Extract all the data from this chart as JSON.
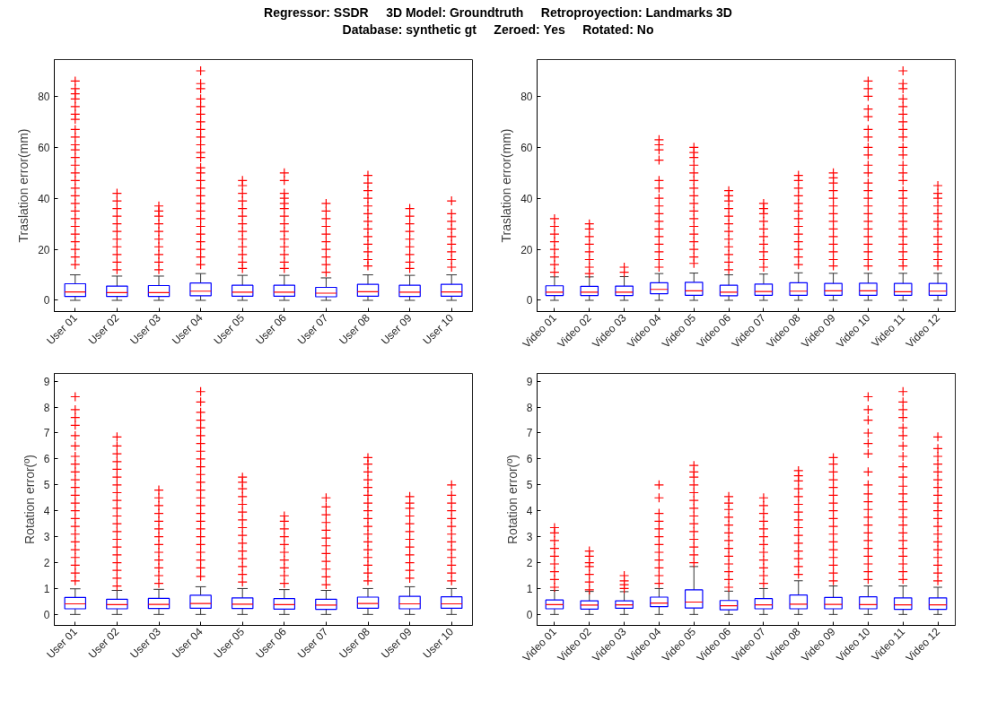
{
  "chart_data": [
    {
      "type": "box",
      "title": "Regressor: SSDR     3D Model: Groundtruth     Retroproyection: Landmarks 3D",
      "subtitle": "Database: synthetic gt     Zeroed: Yes     Rotated: No",
      "ylabel": "Traslation error(mm)",
      "categories": [
        "User 01",
        "User 02",
        "User 03",
        "User 04",
        "User 05",
        "User 06",
        "User 07",
        "User 08",
        "User 09",
        "User 10"
      ],
      "ylim": [
        -4.4,
        94.4
      ],
      "yticks": [
        0,
        20,
        40,
        60,
        80
      ],
      "grid": false,
      "marker": "cross",
      "series": [
        {
          "color": "#0000ff",
          "boxes": [
            {
              "low": 0,
              "q1": 1.5,
              "median": 3.3,
              "q3": 6.5,
              "high": 10,
              "outliers": [
                14,
                17,
                20,
                23,
                26,
                29,
                32,
                35,
                38,
                41,
                44,
                47,
                50,
                53,
                56,
                59,
                61,
                64,
                67,
                71,
                73,
                76,
                79,
                81,
                83,
                86
              ]
            },
            {
              "low": 0,
              "q1": 1.5,
              "median": 3.0,
              "q3": 5.6,
              "high": 9.5,
              "outliers": [
                12,
                15,
                18,
                21,
                24,
                27,
                30,
                33,
                36,
                39,
                42
              ]
            },
            {
              "low": 0,
              "q1": 1.5,
              "median": 3.0,
              "q3": 5.8,
              "high": 9.5,
              "outliers": [
                12,
                15,
                18,
                21,
                24,
                27,
                30,
                33,
                35,
                37
              ]
            },
            {
              "low": 0,
              "q1": 1.8,
              "median": 3.6,
              "q3": 6.8,
              "high": 10.5,
              "outliers": [
                14,
                17,
                20,
                23,
                26,
                29,
                32,
                35,
                38,
                41,
                44,
                47,
                50,
                52,
                56,
                58,
                61,
                64,
                67,
                70,
                73,
                76,
                79,
                83,
                85,
                90
              ]
            },
            {
              "low": 0,
              "q1": 1.6,
              "median": 3.2,
              "q3": 5.9,
              "high": 9.8,
              "outliers": [
                12.5,
                15,
                18,
                21,
                24,
                27,
                30,
                33,
                36,
                39,
                42,
                45,
                47
              ]
            },
            {
              "low": 0,
              "q1": 1.6,
              "median": 3.2,
              "q3": 5.9,
              "high": 9.8,
              "outliers": [
                12.5,
                15,
                18,
                21,
                24,
                27,
                30,
                33,
                36,
                38,
                40,
                42,
                47,
                50
              ]
            },
            {
              "low": 0,
              "q1": 1.4,
              "median": 2.8,
              "q3": 5.1,
              "high": 8.8,
              "outliers": [
                11,
                14,
                17,
                20,
                23,
                26,
                29,
                32,
                35,
                38
              ]
            },
            {
              "low": 0,
              "q1": 1.6,
              "median": 3.4,
              "q3": 6.3,
              "high": 10,
              "outliers": [
                13.5,
                16,
                19,
                22,
                25,
                28,
                31,
                34,
                37,
                40,
                43,
                46,
                49
              ]
            },
            {
              "low": 0,
              "q1": 1.5,
              "median": 3.2,
              "q3": 5.9,
              "high": 9.8,
              "outliers": [
                12.5,
                15,
                18,
                21,
                24,
                27,
                30,
                33,
                36
              ]
            },
            {
              "low": 0,
              "q1": 1.6,
              "median": 3.3,
              "q3": 6.3,
              "high": 10,
              "outliers": [
                13,
                16,
                19,
                22,
                25,
                28,
                31,
                34,
                39
              ]
            }
          ]
        }
      ]
    },
    {
      "type": "box",
      "ylabel": "Traslation error(mm)",
      "categories": [
        "Video 01",
        "Video 02",
        "Video 03",
        "Video 04",
        "Video 05",
        "Video 06",
        "Video 07",
        "Video 08",
        "Video 09",
        "Video 10",
        "Video 11",
        "Video 12"
      ],
      "ylim": [
        -4.4,
        94.4
      ],
      "yticks": [
        0,
        20,
        40,
        60,
        80
      ],
      "grid": false,
      "marker": "cross",
      "series": [
        {
          "color": "#0000ff",
          "boxes": [
            {
              "low": 0,
              "q1": 1.9,
              "median": 3.2,
              "q3": 5.7,
              "high": 9.2,
              "outliers": [
                11,
                14,
                17,
                20,
                23,
                26,
                29,
                32
              ]
            },
            {
              "low": 0,
              "q1": 1.9,
              "median": 3.2,
              "q3": 5.5,
              "high": 9.2,
              "outliers": [
                10.5,
                13,
                16,
                19,
                22,
                25,
                28,
                30
              ]
            },
            {
              "low": 0,
              "q1": 1.9,
              "median": 3.2,
              "q3": 5.6,
              "high": 9.3,
              "outliers": [
                11,
                13
              ]
            },
            {
              "low": 0,
              "q1": 2.6,
              "median": 4.3,
              "q3": 6.9,
              "high": 10.5,
              "outliers": [
                13,
                16,
                19,
                22,
                25,
                28,
                31,
                34,
                37,
                40,
                44,
                47,
                55,
                59,
                61,
                63
              ]
            },
            {
              "low": 0,
              "q1": 2,
              "median": 3.7,
              "q3": 7.1,
              "high": 10.7,
              "outliers": [
                14.5,
                17,
                20,
                23,
                26,
                29,
                32,
                35,
                38,
                41,
                44,
                47,
                50,
                53,
                56,
                58,
                60
              ]
            },
            {
              "low": 0,
              "q1": 1.8,
              "median": 3.2,
              "q3": 5.9,
              "high": 10,
              "outliers": [
                12,
                15,
                18,
                21,
                24,
                27,
                30,
                33,
                36,
                39,
                41,
                43
              ]
            },
            {
              "low": 0,
              "q1": 2,
              "median": 3.5,
              "q3": 6.4,
              "high": 10.3,
              "outliers": [
                13,
                16,
                19,
                22,
                25,
                28,
                31,
                34,
                36,
                38
              ]
            },
            {
              "low": 0,
              "q1": 2,
              "median": 3.6,
              "q3": 6.9,
              "high": 10.8,
              "outliers": [
                14,
                17,
                20,
                23,
                26,
                29,
                32,
                35,
                38,
                41,
                44,
                47,
                49
              ]
            },
            {
              "low": 0,
              "q1": 2,
              "median": 3.7,
              "q3": 6.6,
              "high": 10.6,
              "outliers": [
                13.5,
                16,
                19,
                22,
                25,
                28,
                31,
                34,
                37,
                40,
                43,
                46,
                48,
                50
              ]
            },
            {
              "low": 0,
              "q1": 2,
              "median": 3.7,
              "q3": 6.7,
              "high": 10.6,
              "outliers": [
                13.5,
                16,
                19,
                22,
                25,
                28,
                31,
                34,
                37,
                40,
                43,
                46,
                50,
                53,
                57,
                60,
                64,
                67,
                72,
                75,
                80,
                83,
                86
              ]
            },
            {
              "low": 0,
              "q1": 2,
              "median": 3.4,
              "q3": 6.6,
              "high": 10.6,
              "outliers": [
                13.5,
                16,
                19,
                22,
                25,
                28,
                31,
                34,
                37,
                40,
                43,
                47,
                50,
                53,
                57,
                60,
                64,
                67,
                70,
                73,
                76,
                79,
                83,
                85,
                90
              ]
            },
            {
              "low": 0,
              "q1": 2,
              "median": 3.6,
              "q3": 6.6,
              "high": 10.6,
              "outliers": [
                13.5,
                16,
                19,
                22,
                25,
                28,
                31,
                34,
                37,
                40,
                42,
                45
              ]
            }
          ]
        }
      ]
    },
    {
      "type": "box",
      "ylabel": "Rotation error(º)",
      "categories": [
        "User 01",
        "User 02",
        "User 03",
        "User 04",
        "User 05",
        "User 06",
        "User 07",
        "User 08",
        "User 09",
        "User 10"
      ],
      "ylim": [
        -0.42,
        9.3
      ],
      "yticks": [
        0,
        1,
        2,
        3,
        4,
        5,
        6,
        7,
        8,
        9
      ],
      "grid": false,
      "marker": "cross",
      "series": [
        {
          "color": "#0000ff",
          "boxes": [
            {
              "low": 0,
              "q1": 0.22,
              "median": 0.41,
              "q3": 0.66,
              "high": 0.99,
              "outliers": [
                1.3,
                1.6,
                1.9,
                2.2,
                2.5,
                2.8,
                3.1,
                3.4,
                3.7,
                4.0,
                4.3,
                4.6,
                4.9,
                5.2,
                5.5,
                5.8,
                6.1,
                6.5,
                6.9,
                7.3,
                7.6,
                7.9,
                8.4
              ]
            },
            {
              "low": 0,
              "q1": 0.22,
              "median": 0.38,
              "q3": 0.59,
              "high": 0.93,
              "outliers": [
                1.1,
                1.4,
                1.7,
                2.0,
                2.3,
                2.6,
                2.9,
                3.2,
                3.5,
                3.8,
                4.1,
                4.4,
                4.7,
                5.0,
                5.3,
                5.6,
                5.9,
                6.2,
                6.5,
                6.85
              ]
            },
            {
              "low": 0,
              "q1": 0.23,
              "median": 0.39,
              "q3": 0.62,
              "high": 0.97,
              "outliers": [
                1.2,
                1.5,
                1.8,
                2.1,
                2.4,
                2.7,
                3.0,
                3.3,
                3.6,
                3.9,
                4.2,
                4.5,
                4.8
              ]
            },
            {
              "low": 0,
              "q1": 0.24,
              "median": 0.42,
              "q3": 0.74,
              "high": 1.07,
              "outliers": [
                1.47,
                1.8,
                2.1,
                2.4,
                2.7,
                3.0,
                3.3,
                3.6,
                3.9,
                4.2,
                4.5,
                4.8,
                5.1,
                5.4,
                5.7,
                6.0,
                6.3,
                6.6,
                6.9,
                7.2,
                7.5,
                7.8,
                8.2,
                8.6
              ]
            },
            {
              "low": 0,
              "q1": 0.23,
              "median": 0.4,
              "q3": 0.64,
              "high": 1.0,
              "outliers": [
                1.25,
                1.55,
                1.85,
                2.15,
                2.45,
                2.75,
                3.05,
                3.35,
                3.65,
                3.95,
                4.25,
                4.55,
                4.85,
                5.1,
                5.3
              ]
            },
            {
              "low": 0,
              "q1": 0.21,
              "median": 0.38,
              "q3": 0.61,
              "high": 0.96,
              "outliers": [
                1.2,
                1.5,
                1.8,
                2.1,
                2.4,
                2.7,
                3.0,
                3.3,
                3.6,
                3.8
              ]
            },
            {
              "low": 0,
              "q1": 0.2,
              "median": 0.36,
              "q3": 0.59,
              "high": 0.93,
              "outliers": [
                1.15,
                1.45,
                1.75,
                2.05,
                2.35,
                2.65,
                2.95,
                3.25,
                3.55,
                3.85,
                4.15,
                4.5
              ]
            },
            {
              "low": 0,
              "q1": 0.24,
              "median": 0.42,
              "q3": 0.67,
              "high": 1.0,
              "outliers": [
                1.3,
                1.6,
                1.9,
                2.2,
                2.5,
                2.8,
                3.1,
                3.4,
                3.7,
                4.0,
                4.3,
                4.6,
                4.9,
                5.2,
                5.5,
                5.8,
                6.05
              ]
            },
            {
              "low": 0,
              "q1": 0.22,
              "median": 0.41,
              "q3": 0.7,
              "high": 1.07,
              "outliers": [
                1.4,
                1.7,
                2.0,
                2.3,
                2.6,
                2.9,
                3.2,
                3.5,
                3.8,
                4.1,
                4.3,
                4.55
              ]
            },
            {
              "low": 0,
              "q1": 0.24,
              "median": 0.41,
              "q3": 0.68,
              "high": 1.0,
              "outliers": [
                1.3,
                1.6,
                1.9,
                2.2,
                2.5,
                2.8,
                3.1,
                3.4,
                3.7,
                4.0,
                4.3,
                4.6,
                5.0
              ]
            }
          ]
        }
      ]
    },
    {
      "type": "box",
      "ylabel": "Rotation error(º)",
      "categories": [
        "Video 01",
        "Video 02",
        "Video 03",
        "Video 04",
        "Video 05",
        "Video 06",
        "Video 07",
        "Video 08",
        "Video 09",
        "Video 10",
        "Video 11",
        "Video 12"
      ],
      "ylim": [
        -0.42,
        9.3
      ],
      "yticks": [
        0,
        1,
        2,
        3,
        4,
        5,
        6,
        7,
        8,
        9
      ],
      "grid": false,
      "marker": "cross",
      "series": [
        {
          "color": "#0000ff",
          "boxes": [
            {
              "low": 0,
              "q1": 0.22,
              "median": 0.38,
              "q3": 0.56,
              "high": 0.93,
              "outliers": [
                1.05,
                1.35,
                1.65,
                1.95,
                2.25,
                2.55,
                2.85,
                3.15,
                3.35
              ]
            },
            {
              "low": 0,
              "q1": 0.21,
              "median": 0.36,
              "q3": 0.53,
              "high": 0.89,
              "outliers": [
                0.95,
                1.25,
                1.55,
                1.85,
                2.0,
                2.25,
                2.45
              ]
            },
            {
              "low": 0,
              "q1": 0.24,
              "median": 0.37,
              "q3": 0.53,
              "high": 0.88,
              "outliers": [
                1.0,
                1.15,
                1.3,
                1.5
              ]
            },
            {
              "low": 0,
              "q1": 0.3,
              "median": 0.44,
              "q3": 0.67,
              "high": 1.0,
              "outliers": [
                1.2,
                1.5,
                1.8,
                2.1,
                2.4,
                2.7,
                3.0,
                3.3,
                3.6,
                3.9,
                4.5,
                5.0
              ]
            },
            {
              "low": 0,
              "q1": 0.25,
              "median": 0.48,
              "q3": 0.95,
              "high": 1.85,
              "outliers": [
                2.0,
                2.3,
                2.6,
                2.9,
                3.2,
                3.5,
                3.8,
                4.1,
                4.4,
                4.7,
                5.0,
                5.3,
                5.5,
                5.75
              ]
            },
            {
              "low": 0,
              "q1": 0.18,
              "median": 0.34,
              "q3": 0.54,
              "high": 0.9,
              "outliers": [
                1.05,
                1.35,
                1.65,
                1.95,
                2.25,
                2.55,
                2.85,
                3.15,
                3.45,
                3.75,
                4.05,
                4.3,
                4.55
              ]
            },
            {
              "low": 0,
              "q1": 0.22,
              "median": 0.37,
              "q3": 0.61,
              "high": 1.0,
              "outliers": [
                1.2,
                1.5,
                1.8,
                2.1,
                2.4,
                2.7,
                3.0,
                3.3,
                3.6,
                3.9,
                4.2,
                4.5
              ]
            },
            {
              "low": 0,
              "q1": 0.22,
              "median": 0.4,
              "q3": 0.75,
              "high": 1.3,
              "outliers": [
                1.55,
                1.85,
                2.15,
                2.45,
                2.75,
                3.05,
                3.35,
                3.65,
                3.95,
                4.25,
                4.55,
                4.85,
                5.15,
                5.35,
                5.55
              ]
            },
            {
              "low": 0,
              "q1": 0.22,
              "median": 0.39,
              "q3": 0.66,
              "high": 1.1,
              "outliers": [
                1.3,
                1.6,
                1.9,
                2.2,
                2.5,
                2.8,
                3.1,
                3.4,
                3.7,
                4.0,
                4.3,
                4.6,
                4.9,
                5.2,
                5.5,
                5.8,
                6.05
              ]
            },
            {
              "low": 0,
              "q1": 0.22,
              "median": 0.38,
              "q3": 0.68,
              "high": 1.1,
              "outliers": [
                1.35,
                1.65,
                1.95,
                2.25,
                2.55,
                2.85,
                3.15,
                3.45,
                3.75,
                4.05,
                4.35,
                4.65,
                5.0,
                5.5,
                6.2,
                6.6,
                7.0,
                7.5,
                7.9,
                8.4
              ]
            },
            {
              "low": 0,
              "q1": 0.2,
              "median": 0.37,
              "q3": 0.64,
              "high": 1.1,
              "outliers": [
                1.35,
                1.65,
                1.95,
                2.25,
                2.55,
                2.85,
                3.15,
                3.45,
                3.75,
                4.05,
                4.35,
                4.65,
                4.95,
                5.3,
                5.7,
                6.1,
                6.5,
                6.9,
                7.2,
                7.6,
                7.9,
                8.2,
                8.6
              ]
            },
            {
              "low": 0,
              "q1": 0.2,
              "median": 0.37,
              "q3": 0.64,
              "high": 1.05,
              "outliers": [
                1.3,
                1.6,
                1.9,
                2.2,
                2.5,
                2.8,
                3.1,
                3.4,
                3.7,
                4.0,
                4.3,
                4.6,
                4.9,
                5.2,
                5.5,
                5.8,
                6.1,
                6.4,
                6.85
              ]
            }
          ]
        }
      ]
    }
  ]
}
